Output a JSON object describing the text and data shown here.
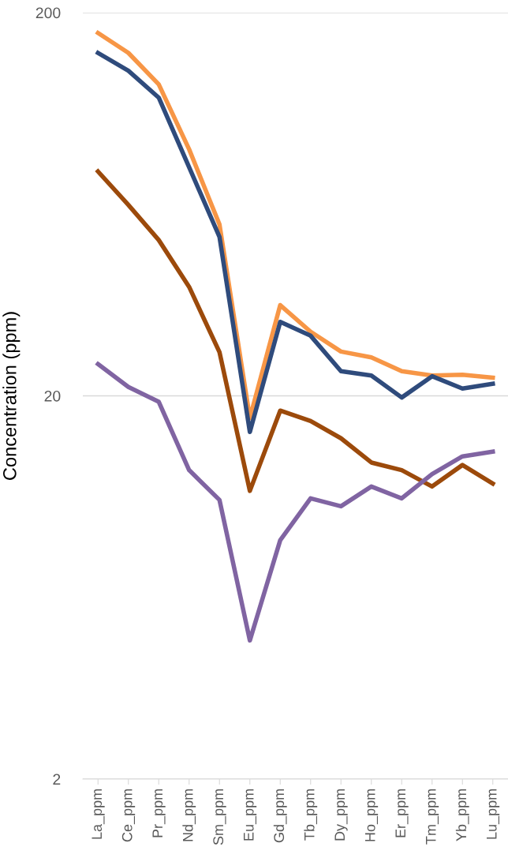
{
  "chart_data": {
    "type": "line",
    "ylabel": "Concentration (ppm)",
    "log": "y",
    "ylim": [
      2,
      200
    ],
    "yticks": [
      2,
      20,
      200
    ],
    "grid": "y",
    "legend": false,
    "marker": "none",
    "line_style": "solid",
    "categories": [
      "La_ppm",
      "Ce_ppm",
      "Pr_ppm",
      "Nd_ppm",
      "Sm_ppm",
      "Eu_ppm",
      "Gd_ppm",
      "Tb_ppm",
      "Dy_ppm",
      "Ho_ppm",
      "Er_ppm",
      "Tm_ppm",
      "Yb_ppm",
      "Lu_ppm"
    ],
    "series": [
      {
        "color": "#f79646",
        "values": [
          177,
          157,
          130,
          88,
          56,
          17.5,
          34.5,
          29.4,
          26.1,
          25.2,
          23.2,
          22.6,
          22.7,
          22.3
        ]
      },
      {
        "color": "#2f4b7c",
        "values": [
          157,
          141,
          120,
          79,
          52,
          16.1,
          31.2,
          28.7,
          23.2,
          22.6,
          19.8,
          22.5,
          20.9,
          21.5
        ]
      },
      {
        "color": "#9c4a0b",
        "values": [
          77,
          63,
          51,
          38.5,
          26,
          11.3,
          18.3,
          17.2,
          15.5,
          13.4,
          12.8,
          11.6,
          13.2,
          11.8
        ]
      },
      {
        "color": "#8064a2",
        "values": [
          24.2,
          21.1,
          19.3,
          12.8,
          10.7,
          4.6,
          8.4,
          10.8,
          10.3,
          11.6,
          10.8,
          12.5,
          13.9,
          14.3
        ]
      }
    ]
  }
}
